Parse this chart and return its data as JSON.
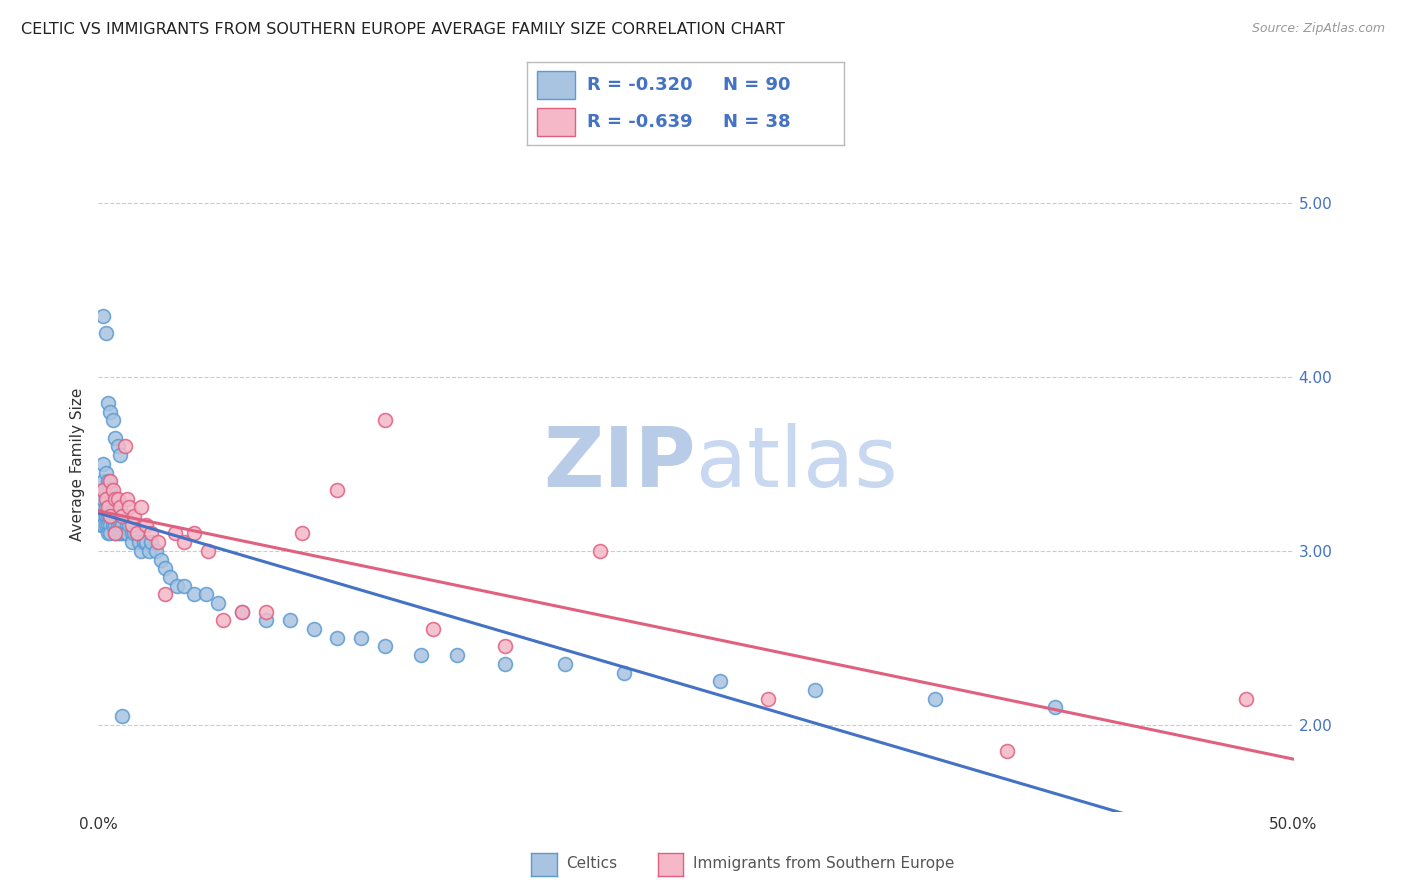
{
  "title": "CELTIC VS IMMIGRANTS FROM SOUTHERN EUROPE AVERAGE FAMILY SIZE CORRELATION CHART",
  "source": "Source: ZipAtlas.com",
  "ylabel": "Average Family Size",
  "xlim": [
    0.0,
    0.5
  ],
  "ylim": [
    1.5,
    5.5
  ],
  "yticks_right": [
    2.0,
    3.0,
    4.0,
    5.0
  ],
  "background_color": "#ffffff",
  "grid_color": "#cccccc",
  "celtics_color": "#a8c4e0",
  "celtics_edge_color": "#5b9bd5",
  "immigrants_color": "#f4b8c8",
  "immigrants_edge_color": "#e06080",
  "trend_celtic_color": "#4472c4",
  "trend_imm_color": "#e06080",
  "title_color": "#222222",
  "title_fontsize": 11.5,
  "source_color": "#999999",
  "source_fontsize": 9,
  "legend_r1": "R = -0.320",
  "legend_n1": "N = 90",
  "legend_r2": "R = -0.639",
  "legend_n2": "N = 38",
  "legend_text_color": "#4472c4",
  "watermark_color": "#c8d8f0",
  "celtics_x": [
    0.001,
    0.001,
    0.001,
    0.001,
    0.002,
    0.002,
    0.002,
    0.002,
    0.002,
    0.003,
    0.003,
    0.003,
    0.003,
    0.003,
    0.004,
    0.004,
    0.004,
    0.004,
    0.004,
    0.005,
    0.005,
    0.005,
    0.005,
    0.005,
    0.006,
    0.006,
    0.006,
    0.006,
    0.007,
    0.007,
    0.007,
    0.007,
    0.008,
    0.008,
    0.008,
    0.009,
    0.009,
    0.009,
    0.01,
    0.01,
    0.01,
    0.011,
    0.011,
    0.012,
    0.012,
    0.013,
    0.014,
    0.014,
    0.015,
    0.016,
    0.017,
    0.018,
    0.019,
    0.02,
    0.021,
    0.022,
    0.024,
    0.026,
    0.028,
    0.03,
    0.033,
    0.036,
    0.04,
    0.045,
    0.05,
    0.06,
    0.07,
    0.08,
    0.09,
    0.1,
    0.11,
    0.12,
    0.135,
    0.15,
    0.17,
    0.195,
    0.22,
    0.26,
    0.3,
    0.35,
    0.4,
    0.002,
    0.003,
    0.004,
    0.005,
    0.006,
    0.007,
    0.008,
    0.009,
    0.01
  ],
  "celtics_y": [
    3.3,
    3.25,
    3.2,
    3.15,
    3.5,
    3.4,
    3.3,
    3.2,
    3.15,
    3.45,
    3.35,
    3.25,
    3.2,
    3.15,
    3.4,
    3.3,
    3.2,
    3.15,
    3.1,
    3.35,
    3.25,
    3.2,
    3.15,
    3.1,
    3.3,
    3.25,
    3.2,
    3.15,
    3.25,
    3.2,
    3.15,
    3.1,
    3.2,
    3.15,
    3.1,
    3.2,
    3.15,
    3.1,
    3.2,
    3.15,
    3.1,
    3.2,
    3.1,
    3.15,
    3.1,
    3.15,
    3.1,
    3.05,
    3.1,
    3.1,
    3.05,
    3.0,
    3.05,
    3.05,
    3.0,
    3.05,
    3.0,
    2.95,
    2.9,
    2.85,
    2.8,
    2.8,
    2.75,
    2.75,
    2.7,
    2.65,
    2.6,
    2.6,
    2.55,
    2.5,
    2.5,
    2.45,
    2.4,
    2.4,
    2.35,
    2.35,
    2.3,
    2.25,
    2.2,
    2.15,
    2.1,
    4.35,
    4.25,
    3.85,
    3.8,
    3.75,
    3.65,
    3.6,
    3.55,
    2.05
  ],
  "imm_x": [
    0.002,
    0.003,
    0.004,
    0.005,
    0.005,
    0.006,
    0.007,
    0.007,
    0.008,
    0.009,
    0.01,
    0.011,
    0.012,
    0.013,
    0.014,
    0.015,
    0.016,
    0.018,
    0.02,
    0.022,
    0.025,
    0.028,
    0.032,
    0.036,
    0.04,
    0.046,
    0.052,
    0.06,
    0.07,
    0.085,
    0.1,
    0.12,
    0.14,
    0.17,
    0.21,
    0.28,
    0.38,
    0.48
  ],
  "imm_y": [
    3.35,
    3.3,
    3.25,
    3.4,
    3.2,
    3.35,
    3.3,
    3.1,
    3.3,
    3.25,
    3.2,
    3.6,
    3.3,
    3.25,
    3.15,
    3.2,
    3.1,
    3.25,
    3.15,
    3.1,
    3.05,
    2.75,
    3.1,
    3.05,
    3.1,
    3.0,
    2.6,
    2.65,
    2.65,
    3.1,
    3.35,
    3.75,
    2.55,
    2.45,
    3.0,
    2.15,
    1.85,
    2.15
  ],
  "marker_size": 100,
  "marker_linewidth": 1.2,
  "trend_linewidth": 2.2
}
